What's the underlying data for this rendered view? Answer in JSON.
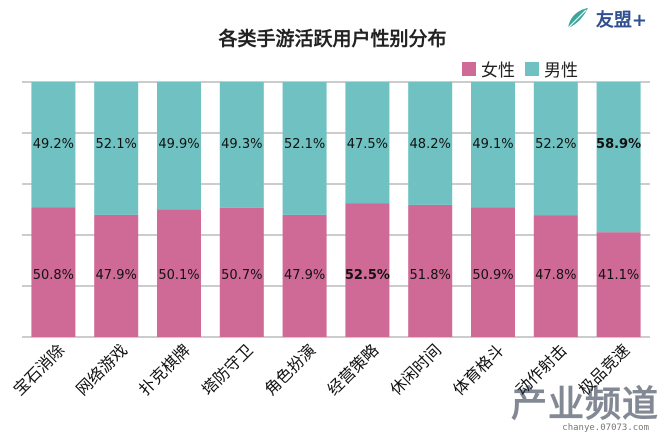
{
  "header": {
    "logo_text": "友盟+",
    "logo_icon": "leaf-logo-icon"
  },
  "watermark": {
    "text": "产业频道",
    "sub": "chanye.07073.com"
  },
  "colors": {
    "female": "#cf6a96",
    "male": "#6fc2c1",
    "grid": "#9a9a9a",
    "text": "#111111"
  },
  "chart_data": {
    "type": "bar",
    "stacked": true,
    "percent": true,
    "title": "各类手游活跃用户性别分布",
    "xlabel": "",
    "ylabel": "",
    "ylim": [
      0,
      100
    ],
    "grid": true,
    "legend_position": "top-right",
    "categories": [
      "宝石消除",
      "网络游戏",
      "扑克棋牌",
      "塔防守卫",
      "角色扮演",
      "经营策略",
      "休闲时间",
      "体育格斗",
      "动作射击",
      "极品竞速"
    ],
    "series": [
      {
        "name": "女性",
        "values": [
          50.8,
          47.9,
          50.1,
          50.7,
          47.9,
          52.5,
          51.8,
          50.9,
          47.8,
          41.1
        ],
        "labels": [
          "50.8%",
          "47.9%",
          "50.1%",
          "50.7%",
          "47.9%",
          "52.5%",
          "51.8%",
          "50.9%",
          "47.8%",
          "41.1%"
        ]
      },
      {
        "name": "男性",
        "values": [
          49.2,
          52.1,
          49.9,
          49.3,
          52.1,
          47.5,
          48.2,
          49.1,
          52.2,
          58.9
        ],
        "labels": [
          "49.2%",
          "52.1%",
          "49.9%",
          "49.3%",
          "52.1%",
          "47.5%",
          "48.2%",
          "49.1%",
          "52.2%",
          "58.9%"
        ]
      }
    ],
    "highlighted_labels": [
      {
        "series": "女性",
        "category": "经营策略"
      },
      {
        "series": "男性",
        "category": "极品竞速"
      }
    ]
  }
}
